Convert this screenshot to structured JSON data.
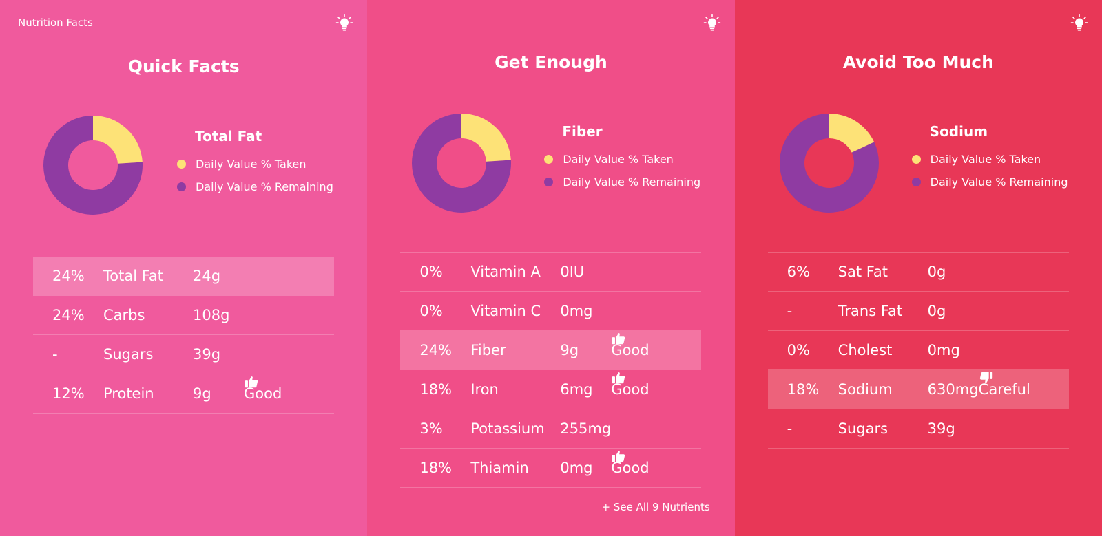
{
  "app": {
    "title": "Nutrition Facts"
  },
  "colors": {
    "panel1_bg": "#f05a9d",
    "panel2_bg": "#f04e88",
    "panel3_bg": "#e83757",
    "taken": "#fde277",
    "remaining": "#8f3ba2"
  },
  "panels": [
    {
      "title": "Quick Facts",
      "legend_title": "Total Fat",
      "legend_taken": "Daily Value % Taken",
      "legend_remaining": "Daily Value % Remaining",
      "taken_pct": 24,
      "rows": [
        {
          "pct": "24%",
          "name": "Total Fat",
          "amount": "24g",
          "tag": ""
        },
        {
          "pct": "24%",
          "name": "Carbs",
          "amount": "108g",
          "tag": ""
        },
        {
          "pct": "-",
          "name": "Sugars",
          "amount": "39g",
          "tag": ""
        },
        {
          "pct": "12%",
          "name": "Protein",
          "amount": "9g",
          "tag": "Good"
        }
      ],
      "highlight_index": 0
    },
    {
      "title": "Get Enough",
      "legend_title": "Fiber",
      "legend_taken": "Daily Value % Taken",
      "legend_remaining": "Daily Value % Remaining",
      "taken_pct": 24,
      "rows": [
        {
          "pct": "0%",
          "name": "Vitamin A",
          "amount": "0IU",
          "tag": ""
        },
        {
          "pct": "0%",
          "name": "Vitamin C",
          "amount": "0mg",
          "tag": ""
        },
        {
          "pct": "24%",
          "name": "Fiber",
          "amount": "9g",
          "tag": "Good"
        },
        {
          "pct": "18%",
          "name": "Iron",
          "amount": "6mg",
          "tag": "Good"
        },
        {
          "pct": "3%",
          "name": "Potassium",
          "amount": "255mg",
          "tag": ""
        },
        {
          "pct": "18%",
          "name": "Thiamin",
          "amount": "0mg",
          "tag": "Good"
        }
      ],
      "highlight_index": 2,
      "see_all": "+ See All 9 Nutrients"
    },
    {
      "title": "Avoid Too Much",
      "legend_title": "Sodium",
      "legend_taken": "Daily Value % Taken",
      "legend_remaining": "Daily Value % Remaining",
      "taken_pct": 18,
      "rows": [
        {
          "pct": "6%",
          "name": "Sat Fat",
          "amount": "0g",
          "tag": ""
        },
        {
          "pct": "-",
          "name": "Trans Fat",
          "amount": "0g",
          "tag": ""
        },
        {
          "pct": "0%",
          "name": "Cholest",
          "amount": "0mg",
          "tag": ""
        },
        {
          "pct": "18%",
          "name": "Sodium",
          "amount": "630mg",
          "tag": "Careful"
        },
        {
          "pct": "-",
          "name": "Sugars",
          "amount": "39g",
          "tag": ""
        }
      ],
      "highlight_index": 3
    }
  ],
  "icons": {
    "bulb": "lightbulb-icon",
    "good": "thumbs-up-icon",
    "careful": "thumbs-down-icon"
  }
}
